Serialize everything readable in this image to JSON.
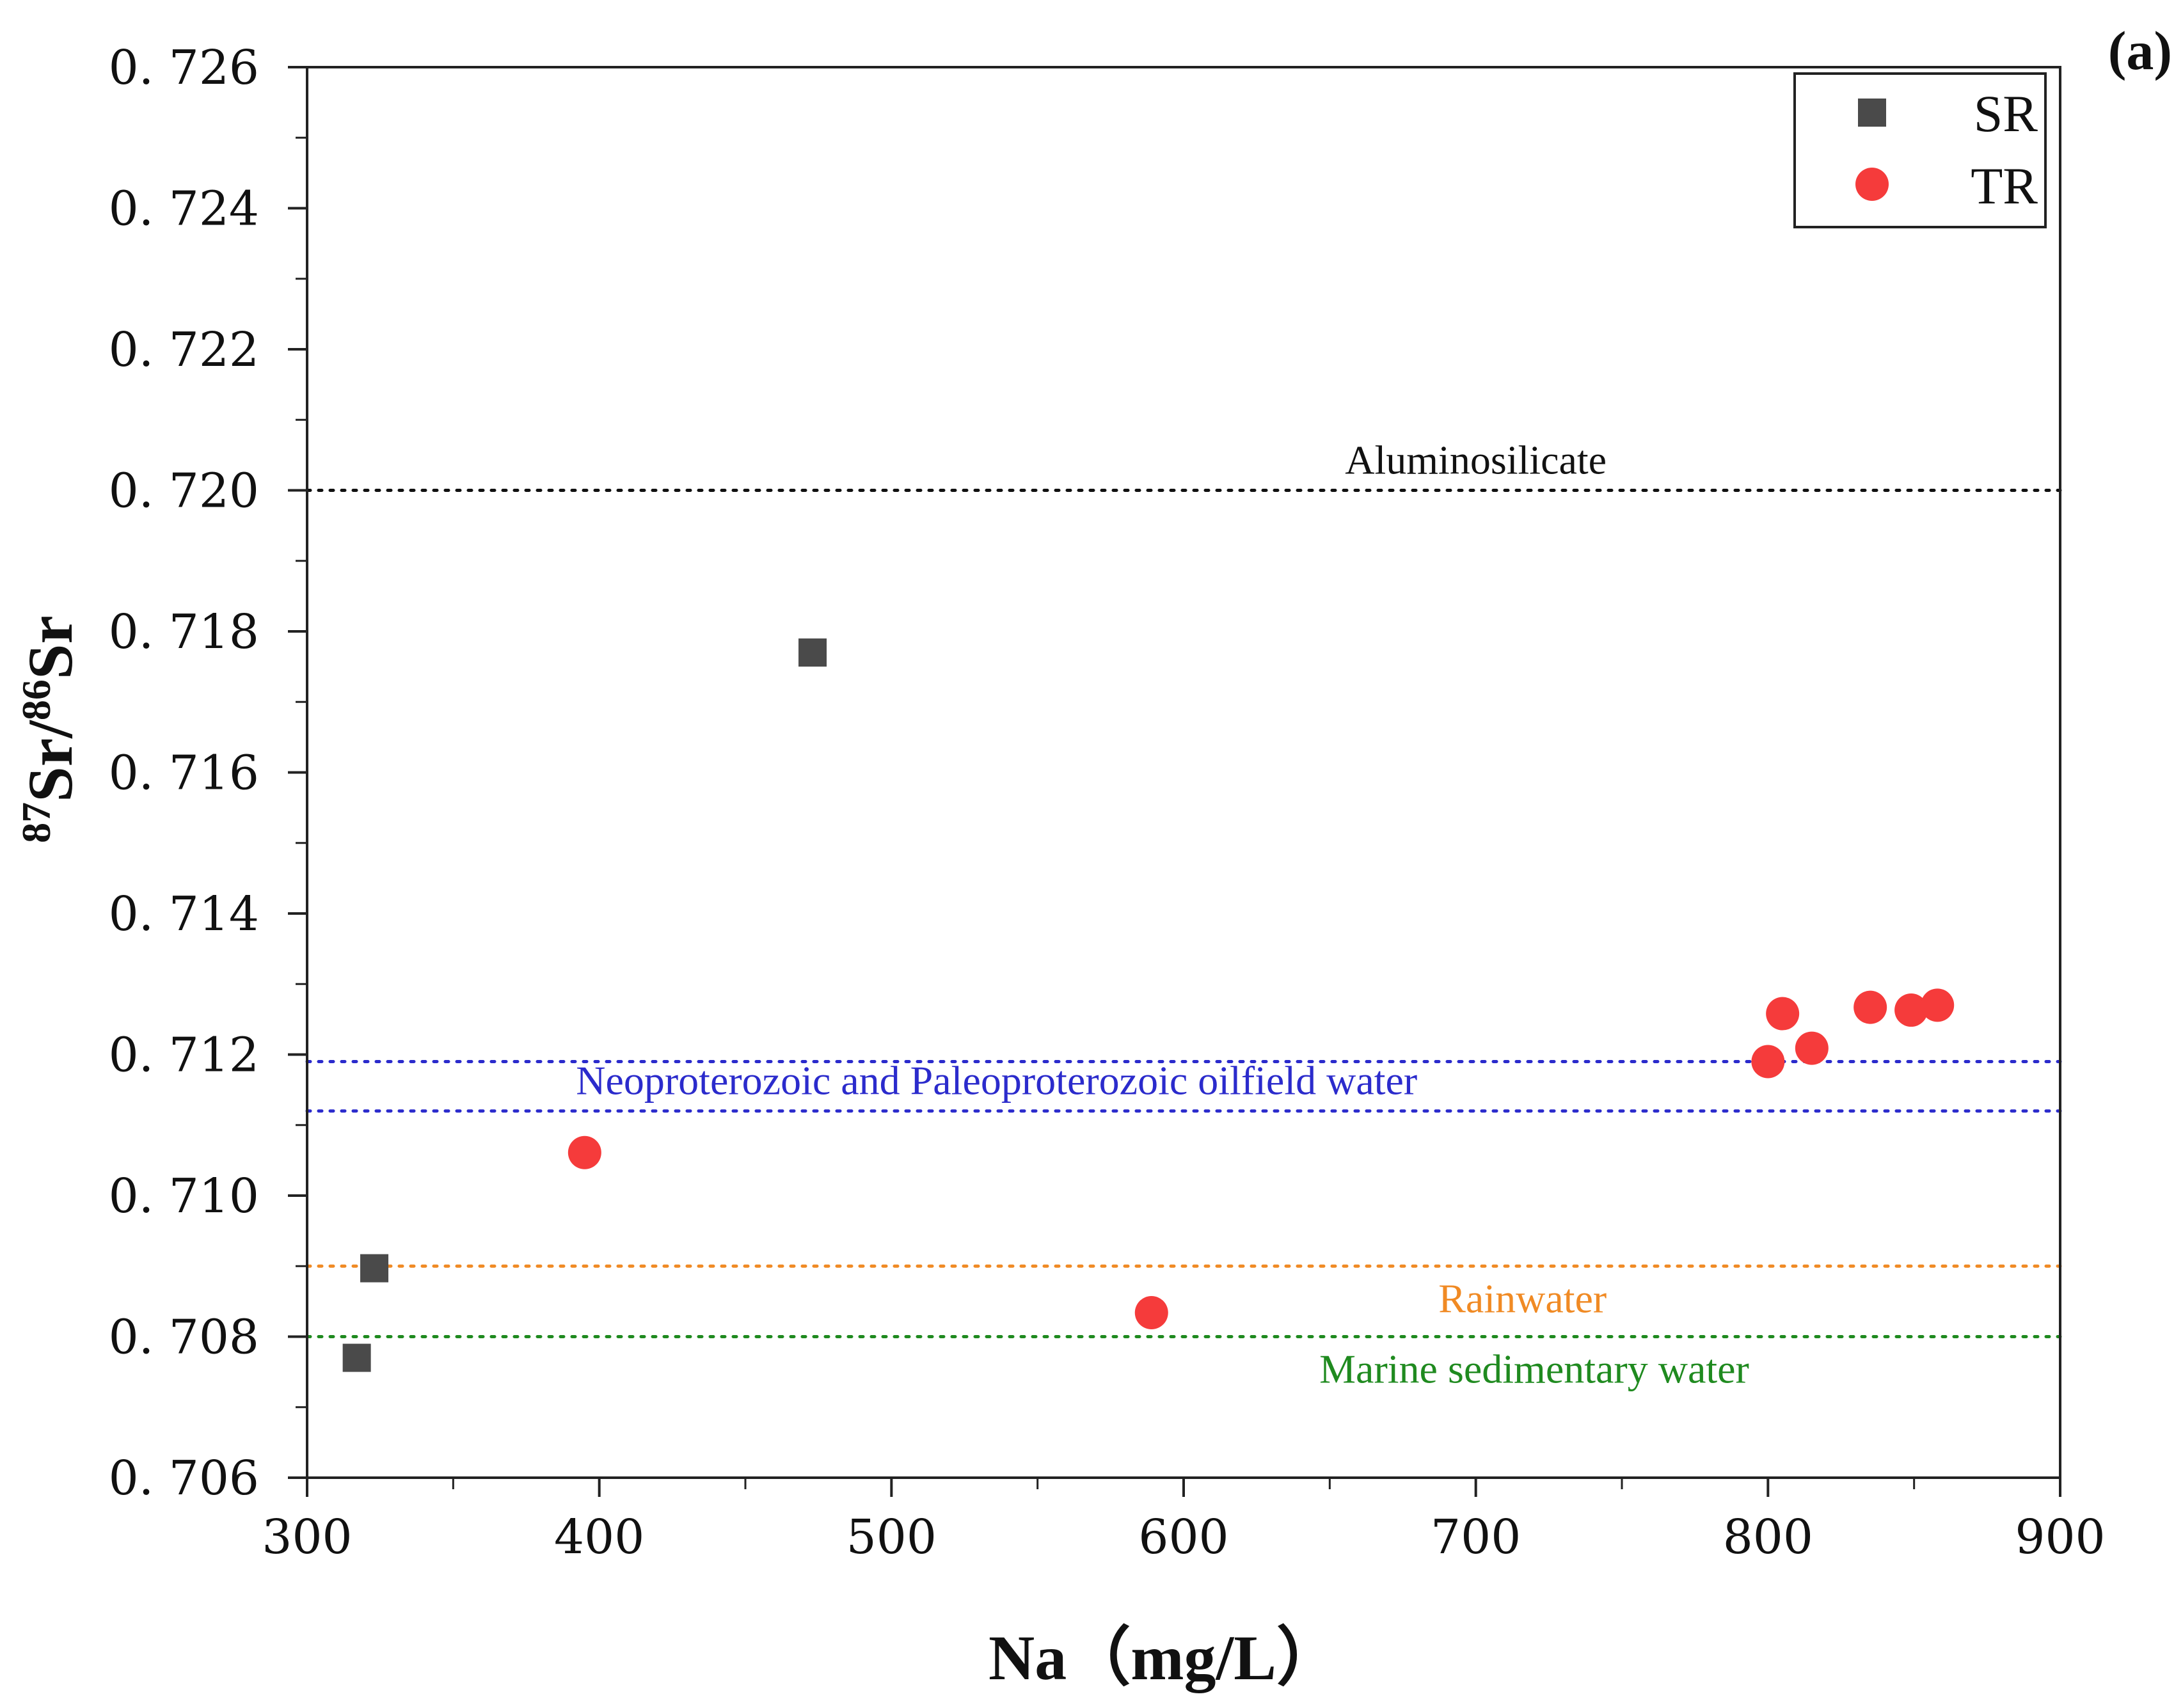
{
  "chart_data": {
    "type": "scatter",
    "panel_label": "(a)",
    "xlabel": "Na（mg/L）",
    "ylabel_parts": {
      "sup1": "87",
      "base1": "Sr/",
      "sup2": "86",
      "base2": "Sr"
    },
    "xlim": [
      300,
      900
    ],
    "ylim": [
      0.706,
      0.726
    ],
    "x_ticks": [
      300,
      400,
      500,
      600,
      700,
      800,
      900
    ],
    "x_tick_labels": [
      "300",
      "400",
      "500",
      "600",
      "700",
      "800",
      "900"
    ],
    "y_ticks": [
      0.706,
      0.708,
      0.71,
      0.712,
      0.714,
      0.716,
      0.718,
      0.72,
      0.722,
      0.724,
      0.726
    ],
    "y_tick_labels": [
      "0. 706",
      "0. 708",
      "0. 710",
      "0. 712",
      "0. 714",
      "0. 716",
      "0. 718",
      "0. 720",
      "0. 722",
      "0. 724",
      "0. 726"
    ],
    "grid": false,
    "legend_position": "top-right",
    "series": [
      {
        "name": "SR",
        "marker": "square",
        "color": "#4a4a4a",
        "points": [
          [
            317,
            0.7077
          ],
          [
            323,
            0.70897
          ],
          [
            473,
            0.7177
          ]
        ]
      },
      {
        "name": "TR",
        "marker": "circle",
        "color": "#f53b3b",
        "points": [
          [
            395,
            0.71061
          ],
          [
            589,
            0.70834
          ],
          [
            800,
            0.7119
          ],
          [
            805,
            0.71258
          ],
          [
            815,
            0.71209
          ],
          [
            835,
            0.71267
          ],
          [
            849,
            0.71263
          ],
          [
            858,
            0.7127
          ]
        ]
      }
    ],
    "reference_lines": [
      {
        "y": 0.72,
        "color": "#111111",
        "label": "Aluminosilicate",
        "label_x": 700,
        "label_pos": "above"
      },
      {
        "y": 0.7119,
        "color": "#2b2bcc",
        "label": "",
        "label_x": 0,
        "label_pos": "none"
      },
      {
        "y": 0.7112,
        "color": "#2b2bcc",
        "label": "Neoproterozoic and Paleoproterozoic oilfield water",
        "label_x": 536,
        "label_pos": "above"
      },
      {
        "y": 0.709,
        "color": "#f08a24",
        "label": "Rainwater",
        "label_x": 716,
        "label_pos": "below"
      },
      {
        "y": 0.708,
        "color": "#1f8a1f",
        "label": "Marine sedimentary water",
        "label_x": 720,
        "label_pos": "below"
      }
    ]
  }
}
